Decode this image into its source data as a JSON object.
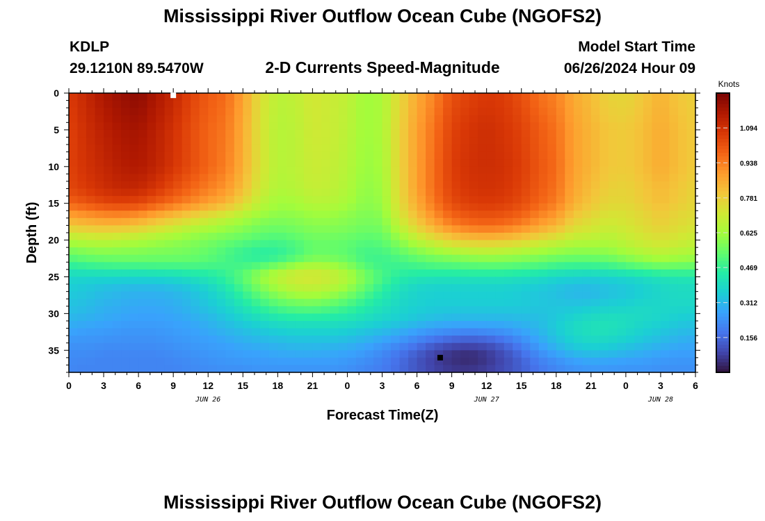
{
  "page": {
    "title": "Mississippi River Outflow Ocean Cube (NGOFS2)",
    "station": "KDLP",
    "coordinates": "29.1210N  89.5470W",
    "subtitle": "2-D Currents Speed-Magnitude",
    "model_start_label": "Model Start Time",
    "model_start_value": "06/26/2024 Hour 09",
    "footer_title": "Mississippi River Outflow Ocean Cube (NGOFS2)"
  },
  "colors": {
    "background": "#ffffff",
    "frame": "#000000",
    "colormap": [
      "#30123b",
      "#4145ab",
      "#4675ed",
      "#39a2fc",
      "#1bcfd4",
      "#24eca6",
      "#61fc6c",
      "#a4fc3b",
      "#d1e834",
      "#f3c63a",
      "#fe9b2d",
      "#f36315",
      "#d93806",
      "#b11901",
      "#7a0403"
    ]
  },
  "chart_data": {
    "type": "heatmap",
    "title": "2-D Currents Speed-Magnitude",
    "xlabel": "Forecast Time(Z)",
    "ylabel": "Depth (ft)",
    "x_range_hours": [
      0,
      54
    ],
    "x_ticks": [
      {
        "hour": 0,
        "label": "0"
      },
      {
        "hour": 3,
        "label": "3"
      },
      {
        "hour": 6,
        "label": "6"
      },
      {
        "hour": 9,
        "label": "9"
      },
      {
        "hour": 12,
        "label": "12"
      },
      {
        "hour": 15,
        "label": "15"
      },
      {
        "hour": 18,
        "label": "18"
      },
      {
        "hour": 21,
        "label": "21"
      },
      {
        "hour": 24,
        "label": "0"
      },
      {
        "hour": 27,
        "label": "3"
      },
      {
        "hour": 30,
        "label": "6"
      },
      {
        "hour": 33,
        "label": "9"
      },
      {
        "hour": 36,
        "label": "12"
      },
      {
        "hour": 39,
        "label": "15"
      },
      {
        "hour": 42,
        "label": "18"
      },
      {
        "hour": 45,
        "label": "21"
      },
      {
        "hour": 48,
        "label": "0"
      },
      {
        "hour": 51,
        "label": "3"
      },
      {
        "hour": 54,
        "label": "6"
      }
    ],
    "date_labels": [
      {
        "hour": 12,
        "label": "JUN 26"
      },
      {
        "hour": 36,
        "label": "JUN 27"
      },
      {
        "hour": 51,
        "label": "JUN 28"
      }
    ],
    "y_range_ft": [
      0,
      38
    ],
    "y_ticks": [
      0,
      5,
      10,
      15,
      20,
      25,
      30,
      35
    ],
    "depth_rows_ft": [
      0,
      5,
      10,
      13,
      15,
      16,
      17,
      18,
      19,
      20,
      21,
      22,
      23,
      24,
      25,
      26,
      27,
      28,
      29,
      30,
      31,
      32,
      33,
      34,
      35,
      36,
      37,
      38
    ],
    "speed_rows_knots": [
      [
        1.07,
        1.12,
        1.17,
        1.2,
        1.22,
        1.17,
        1.12,
        1.05,
        1.0,
        0.97,
        0.88,
        0.74,
        0.67,
        0.68,
        0.72,
        0.7,
        0.68,
        0.62,
        0.64,
        0.76,
        0.86,
        0.93,
        1.02,
        1.05,
        1.07,
        1.06,
        1.02,
        0.96,
        0.93,
        0.86,
        0.82,
        0.77,
        0.76,
        0.8,
        0.84,
        0.8,
        0.78
      ],
      [
        1.05,
        1.1,
        1.14,
        1.17,
        1.18,
        1.14,
        1.09,
        1.03,
        0.98,
        0.95,
        0.86,
        0.73,
        0.66,
        0.67,
        0.71,
        0.7,
        0.67,
        0.62,
        0.64,
        0.77,
        0.88,
        0.96,
        1.05,
        1.08,
        1.1,
        1.08,
        1.05,
        1.0,
        0.96,
        0.88,
        0.84,
        0.8,
        0.79,
        0.82,
        0.86,
        0.82,
        0.79
      ],
      [
        1.05,
        1.09,
        1.12,
        1.15,
        1.16,
        1.13,
        1.08,
        1.03,
        0.98,
        0.94,
        0.85,
        0.73,
        0.66,
        0.67,
        0.7,
        0.69,
        0.66,
        0.61,
        0.63,
        0.77,
        0.88,
        0.97,
        1.06,
        1.09,
        1.1,
        1.09,
        1.06,
        1.01,
        0.97,
        0.88,
        0.84,
        0.8,
        0.79,
        0.82,
        0.86,
        0.82,
        0.79
      ],
      [
        1.04,
        1.07,
        1.1,
        1.12,
        1.12,
        1.08,
        1.03,
        0.98,
        0.94,
        0.9,
        0.82,
        0.71,
        0.65,
        0.66,
        0.69,
        0.68,
        0.65,
        0.6,
        0.62,
        0.76,
        0.88,
        0.97,
        1.05,
        1.08,
        1.09,
        1.08,
        1.05,
        1.0,
        0.96,
        0.87,
        0.82,
        0.78,
        0.77,
        0.8,
        0.83,
        0.8,
        0.77
      ],
      [
        0.98,
        1.01,
        1.04,
        1.05,
        1.04,
        1.0,
        0.96,
        0.92,
        0.88,
        0.84,
        0.76,
        0.67,
        0.62,
        0.63,
        0.66,
        0.66,
        0.63,
        0.59,
        0.61,
        0.75,
        0.86,
        0.95,
        1.03,
        1.06,
        1.07,
        1.06,
        1.03,
        0.98,
        0.94,
        0.85,
        0.8,
        0.76,
        0.76,
        0.79,
        0.82,
        0.79,
        0.76
      ],
      [
        0.92,
        0.94,
        0.96,
        0.97,
        0.96,
        0.92,
        0.88,
        0.84,
        0.8,
        0.76,
        0.7,
        0.64,
        0.61,
        0.61,
        0.63,
        0.63,
        0.61,
        0.58,
        0.6,
        0.73,
        0.84,
        0.93,
        1.0,
        1.03,
        1.04,
        1.03,
        1.0,
        0.95,
        0.91,
        0.82,
        0.78,
        0.74,
        0.74,
        0.77,
        0.8,
        0.77,
        0.75
      ],
      [
        0.86,
        0.88,
        0.9,
        0.9,
        0.88,
        0.84,
        0.8,
        0.76,
        0.72,
        0.68,
        0.64,
        0.6,
        0.58,
        0.59,
        0.61,
        0.61,
        0.59,
        0.57,
        0.58,
        0.71,
        0.81,
        0.9,
        0.97,
        1.0,
        1.01,
        1.0,
        0.97,
        0.92,
        0.88,
        0.79,
        0.75,
        0.72,
        0.73,
        0.76,
        0.79,
        0.76,
        0.74
      ],
      [
        0.8,
        0.82,
        0.83,
        0.83,
        0.81,
        0.77,
        0.73,
        0.69,
        0.66,
        0.63,
        0.6,
        0.57,
        0.56,
        0.57,
        0.59,
        0.59,
        0.58,
        0.56,
        0.57,
        0.68,
        0.78,
        0.86,
        0.93,
        0.96,
        0.97,
        0.96,
        0.93,
        0.88,
        0.84,
        0.76,
        0.73,
        0.7,
        0.72,
        0.75,
        0.78,
        0.75,
        0.73
      ],
      [
        0.72,
        0.74,
        0.75,
        0.74,
        0.72,
        0.69,
        0.66,
        0.63,
        0.61,
        0.59,
        0.57,
        0.54,
        0.53,
        0.55,
        0.57,
        0.57,
        0.56,
        0.54,
        0.55,
        0.64,
        0.73,
        0.8,
        0.86,
        0.89,
        0.9,
        0.89,
        0.86,
        0.82,
        0.78,
        0.72,
        0.7,
        0.68,
        0.7,
        0.73,
        0.76,
        0.73,
        0.71
      ],
      [
        0.65,
        0.67,
        0.68,
        0.67,
        0.65,
        0.63,
        0.61,
        0.59,
        0.57,
        0.55,
        0.53,
        0.51,
        0.5,
        0.52,
        0.55,
        0.55,
        0.54,
        0.52,
        0.53,
        0.6,
        0.67,
        0.73,
        0.78,
        0.8,
        0.81,
        0.8,
        0.78,
        0.74,
        0.71,
        0.67,
        0.66,
        0.65,
        0.68,
        0.71,
        0.73,
        0.71,
        0.69
      ],
      [
        0.59,
        0.61,
        0.62,
        0.61,
        0.6,
        0.59,
        0.58,
        0.57,
        0.55,
        0.52,
        0.49,
        0.47,
        0.47,
        0.5,
        0.54,
        0.54,
        0.53,
        0.5,
        0.51,
        0.56,
        0.61,
        0.65,
        0.69,
        0.71,
        0.72,
        0.71,
        0.69,
        0.66,
        0.64,
        0.62,
        0.62,
        0.62,
        0.65,
        0.68,
        0.7,
        0.68,
        0.66
      ],
      [
        0.54,
        0.56,
        0.57,
        0.57,
        0.57,
        0.56,
        0.56,
        0.55,
        0.53,
        0.5,
        0.47,
        0.45,
        0.46,
        0.5,
        0.55,
        0.55,
        0.53,
        0.49,
        0.49,
        0.52,
        0.56,
        0.59,
        0.61,
        0.63,
        0.64,
        0.63,
        0.62,
        0.6,
        0.58,
        0.57,
        0.57,
        0.58,
        0.61,
        0.64,
        0.66,
        0.64,
        0.63
      ],
      [
        0.49,
        0.51,
        0.52,
        0.53,
        0.53,
        0.53,
        0.53,
        0.53,
        0.52,
        0.5,
        0.48,
        0.48,
        0.51,
        0.56,
        0.6,
        0.59,
        0.56,
        0.5,
        0.48,
        0.49,
        0.51,
        0.53,
        0.54,
        0.55,
        0.56,
        0.56,
        0.55,
        0.54,
        0.52,
        0.51,
        0.51,
        0.52,
        0.55,
        0.58,
        0.6,
        0.59,
        0.58
      ],
      [
        0.43,
        0.44,
        0.45,
        0.45,
        0.45,
        0.46,
        0.46,
        0.47,
        0.47,
        0.48,
        0.51,
        0.56,
        0.62,
        0.67,
        0.69,
        0.67,
        0.62,
        0.54,
        0.49,
        0.47,
        0.47,
        0.48,
        0.48,
        0.49,
        0.49,
        0.49,
        0.48,
        0.47,
        0.45,
        0.44,
        0.44,
        0.45,
        0.47,
        0.49,
        0.51,
        0.51,
        0.51
      ],
      [
        0.38,
        0.38,
        0.38,
        0.38,
        0.38,
        0.38,
        0.39,
        0.41,
        0.43,
        0.47,
        0.53,
        0.61,
        0.67,
        0.71,
        0.72,
        0.7,
        0.65,
        0.57,
        0.5,
        0.45,
        0.43,
        0.42,
        0.42,
        0.42,
        0.42,
        0.42,
        0.41,
        0.4,
        0.38,
        0.37,
        0.36,
        0.37,
        0.38,
        0.4,
        0.42,
        0.43,
        0.43
      ],
      [
        0.36,
        0.35,
        0.34,
        0.33,
        0.33,
        0.33,
        0.34,
        0.36,
        0.39,
        0.44,
        0.51,
        0.59,
        0.65,
        0.69,
        0.7,
        0.68,
        0.63,
        0.55,
        0.48,
        0.42,
        0.39,
        0.38,
        0.38,
        0.38,
        0.38,
        0.38,
        0.37,
        0.36,
        0.34,
        0.33,
        0.33,
        0.34,
        0.35,
        0.37,
        0.39,
        0.4,
        0.4
      ],
      [
        0.35,
        0.34,
        0.32,
        0.31,
        0.3,
        0.3,
        0.31,
        0.33,
        0.36,
        0.41,
        0.48,
        0.55,
        0.61,
        0.65,
        0.66,
        0.64,
        0.59,
        0.52,
        0.45,
        0.4,
        0.37,
        0.36,
        0.36,
        0.36,
        0.36,
        0.36,
        0.35,
        0.34,
        0.33,
        0.31,
        0.31,
        0.33,
        0.34,
        0.36,
        0.38,
        0.39,
        0.39
      ],
      [
        0.34,
        0.33,
        0.31,
        0.3,
        0.29,
        0.29,
        0.3,
        0.32,
        0.35,
        0.39,
        0.45,
        0.51,
        0.56,
        0.59,
        0.6,
        0.58,
        0.54,
        0.48,
        0.43,
        0.39,
        0.37,
        0.36,
        0.36,
        0.36,
        0.36,
        0.36,
        0.35,
        0.34,
        0.33,
        0.32,
        0.32,
        0.34,
        0.35,
        0.37,
        0.38,
        0.39,
        0.39
      ],
      [
        0.33,
        0.32,
        0.3,
        0.29,
        0.28,
        0.28,
        0.29,
        0.31,
        0.34,
        0.37,
        0.42,
        0.47,
        0.51,
        0.53,
        0.54,
        0.52,
        0.49,
        0.45,
        0.41,
        0.38,
        0.36,
        0.35,
        0.35,
        0.35,
        0.35,
        0.35,
        0.35,
        0.34,
        0.34,
        0.34,
        0.35,
        0.36,
        0.37,
        0.38,
        0.38,
        0.38,
        0.38
      ],
      [
        0.32,
        0.31,
        0.29,
        0.28,
        0.27,
        0.27,
        0.28,
        0.3,
        0.32,
        0.35,
        0.39,
        0.43,
        0.46,
        0.48,
        0.48,
        0.47,
        0.45,
        0.42,
        0.39,
        0.37,
        0.35,
        0.34,
        0.33,
        0.33,
        0.33,
        0.33,
        0.33,
        0.33,
        0.34,
        0.36,
        0.38,
        0.39,
        0.39,
        0.39,
        0.38,
        0.37,
        0.36
      ],
      [
        0.3,
        0.29,
        0.28,
        0.27,
        0.26,
        0.26,
        0.27,
        0.28,
        0.3,
        0.33,
        0.36,
        0.39,
        0.41,
        0.42,
        0.42,
        0.42,
        0.41,
        0.39,
        0.37,
        0.35,
        0.33,
        0.31,
        0.3,
        0.3,
        0.3,
        0.3,
        0.31,
        0.32,
        0.35,
        0.38,
        0.4,
        0.41,
        0.4,
        0.38,
        0.37,
        0.35,
        0.34
      ],
      [
        0.28,
        0.27,
        0.26,
        0.25,
        0.25,
        0.25,
        0.26,
        0.27,
        0.29,
        0.31,
        0.33,
        0.35,
        0.37,
        0.38,
        0.38,
        0.38,
        0.37,
        0.35,
        0.33,
        0.31,
        0.28,
        0.26,
        0.25,
        0.24,
        0.25,
        0.26,
        0.28,
        0.31,
        0.35,
        0.39,
        0.41,
        0.41,
        0.39,
        0.37,
        0.35,
        0.33,
        0.32
      ],
      [
        0.26,
        0.25,
        0.25,
        0.24,
        0.24,
        0.24,
        0.25,
        0.26,
        0.27,
        0.29,
        0.31,
        0.33,
        0.34,
        0.35,
        0.35,
        0.35,
        0.34,
        0.32,
        0.3,
        0.27,
        0.24,
        0.21,
        0.19,
        0.18,
        0.19,
        0.21,
        0.25,
        0.29,
        0.34,
        0.38,
        0.4,
        0.4,
        0.38,
        0.35,
        0.33,
        0.31,
        0.3
      ],
      [
        0.24,
        0.24,
        0.23,
        0.23,
        0.23,
        0.23,
        0.24,
        0.25,
        0.26,
        0.27,
        0.29,
        0.3,
        0.31,
        0.32,
        0.32,
        0.32,
        0.31,
        0.29,
        0.26,
        0.23,
        0.19,
        0.15,
        0.12,
        0.11,
        0.12,
        0.16,
        0.21,
        0.27,
        0.32,
        0.36,
        0.38,
        0.37,
        0.35,
        0.33,
        0.31,
        0.29,
        0.28
      ],
      [
        0.23,
        0.23,
        0.22,
        0.22,
        0.22,
        0.22,
        0.23,
        0.24,
        0.25,
        0.26,
        0.27,
        0.28,
        0.29,
        0.3,
        0.3,
        0.29,
        0.28,
        0.26,
        0.23,
        0.19,
        0.15,
        0.1,
        0.07,
        0.06,
        0.08,
        0.12,
        0.18,
        0.24,
        0.29,
        0.33,
        0.34,
        0.34,
        0.32,
        0.3,
        0.28,
        0.27,
        0.27
      ],
      [
        0.22,
        0.22,
        0.21,
        0.21,
        0.21,
        0.21,
        0.22,
        0.23,
        0.24,
        0.25,
        0.26,
        0.26,
        0.27,
        0.27,
        0.27,
        0.27,
        0.26,
        0.24,
        0.21,
        0.17,
        0.12,
        0.08,
        0.05,
        0.04,
        0.06,
        0.1,
        0.15,
        0.21,
        0.25,
        0.28,
        0.3,
        0.29,
        0.28,
        0.27,
        0.26,
        0.25,
        0.25
      ],
      [
        0.22,
        0.21,
        0.21,
        0.21,
        0.21,
        0.21,
        0.21,
        0.22,
        0.23,
        0.24,
        0.24,
        0.25,
        0.25,
        0.25,
        0.25,
        0.25,
        0.24,
        0.22,
        0.2,
        0.16,
        0.12,
        0.08,
        0.06,
        0.05,
        0.07,
        0.1,
        0.14,
        0.19,
        0.22,
        0.25,
        0.26,
        0.26,
        0.25,
        0.25,
        0.24,
        0.24,
        0.24
      ],
      [
        0.21,
        0.21,
        0.21,
        0.21,
        0.21,
        0.21,
        0.21,
        0.22,
        0.22,
        0.23,
        0.23,
        0.24,
        0.24,
        0.24,
        0.24,
        0.24,
        0.23,
        0.21,
        0.19,
        0.16,
        0.12,
        0.09,
        0.07,
        0.07,
        0.08,
        0.11,
        0.14,
        0.18,
        0.21,
        0.23,
        0.24,
        0.24,
        0.24,
        0.24,
        0.23,
        0.23,
        0.23
      ]
    ],
    "markers": [
      {
        "name": "max-speed-marker",
        "hour": 9,
        "depth_ft": 0.3,
        "color": "#ffffff"
      },
      {
        "name": "min-speed-marker",
        "hour": 32,
        "depth_ft": 36,
        "color": "#000000"
      }
    ],
    "colorbar": {
      "label": "Knots",
      "min": 0.0,
      "max": 1.25,
      "ticks": [
        0.156,
        0.312,
        0.469,
        0.625,
        0.781,
        0.938,
        1.094
      ],
      "tick_labels": [
        "0.156",
        "0.312",
        "0.469",
        "0.625",
        "0.781",
        "0.938",
        "1.094"
      ]
    }
  }
}
